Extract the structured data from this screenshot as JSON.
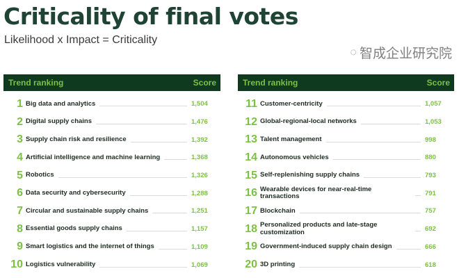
{
  "title": "Criticality of final votes",
  "subtitle": "Likelihood x Impact = Criticality",
  "header": {
    "ranking": "Trend ranking",
    "score": "Score"
  },
  "left": [
    {
      "rank": "1",
      "label": "Big data and analytics",
      "score": "1,504"
    },
    {
      "rank": "2",
      "label": "Digital supply chains",
      "score": "1,476"
    },
    {
      "rank": "3",
      "label": "Supply chain risk and resilience",
      "score": "1,392"
    },
    {
      "rank": "4",
      "label": "Artificial intelligence and machine learning",
      "score": "1,368"
    },
    {
      "rank": "5",
      "label": "Robotics",
      "score": "1,326"
    },
    {
      "rank": "6",
      "label": "Data security and cybersecurity",
      "score": "1,288"
    },
    {
      "rank": "7",
      "label": "Circular and sustainable supply chains",
      "score": "1,251"
    },
    {
      "rank": "8",
      "label": "Essential goods supply chains",
      "score": "1,157"
    },
    {
      "rank": "9",
      "label": "Smart logistics and the internet of things",
      "score": "1,109"
    },
    {
      "rank": "10",
      "label": "Logistics vulnerability",
      "score": "1,069"
    }
  ],
  "right": [
    {
      "rank": "11",
      "label": "Customer-centricity",
      "score": "1,057"
    },
    {
      "rank": "12",
      "label": "Global-regional-local networks",
      "score": "1,053"
    },
    {
      "rank": "13",
      "label": "Talent management",
      "score": "998"
    },
    {
      "rank": "14",
      "label": "Autonomous vehicles",
      "score": "880"
    },
    {
      "rank": "15",
      "label": "Self-replenishing supply chains",
      "score": "793"
    },
    {
      "rank": "16",
      "label": "Wearable devices for near-real-time transactions",
      "score": "791"
    },
    {
      "rank": "17",
      "label": "Blockchain",
      "score": "757"
    },
    {
      "rank": "18",
      "label": "Personalized products and late-stage customization",
      "score": "692"
    },
    {
      "rank": "19",
      "label": "Government-induced supply chain design",
      "score": "666"
    },
    {
      "rank": "20",
      "label": "3D printing",
      "score": "618"
    }
  ],
  "watermark": "智成企业研究院"
}
